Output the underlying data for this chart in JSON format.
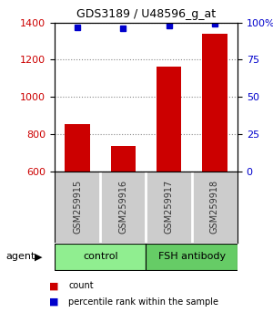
{
  "title": "GDS3189 / U48596_g_at",
  "samples": [
    "GSM259915",
    "GSM259916",
    "GSM259917",
    "GSM259918"
  ],
  "counts": [
    855,
    735,
    1165,
    1340
  ],
  "percentile_ranks": [
    97,
    96,
    98,
    99
  ],
  "ylim_left": [
    600,
    1400
  ],
  "ylim_right": [
    0,
    100
  ],
  "yticks_left": [
    600,
    800,
    1000,
    1200,
    1400
  ],
  "yticks_right": [
    0,
    25,
    50,
    75,
    100
  ],
  "ytick_labels_right": [
    "0",
    "25",
    "50",
    "75",
    "100%"
  ],
  "groups": [
    {
      "label": "control",
      "samples": [
        0,
        1
      ],
      "color": "#90EE90"
    },
    {
      "label": "FSH antibody",
      "samples": [
        2,
        3
      ],
      "color": "#66CC66"
    }
  ],
  "bar_color": "#CC0000",
  "dot_color": "#0000CC",
  "bar_width": 0.55,
  "background_color": "#ffffff",
  "plot_bg_color": "#ffffff",
  "sample_label_color": "#333333",
  "left_tick_color": "#CC0000",
  "right_tick_color": "#0000CC",
  "legend_items": [
    {
      "label": "count",
      "color": "#CC0000"
    },
    {
      "label": "percentile rank within the sample",
      "color": "#0000CC"
    }
  ],
  "agent_label": "agent",
  "grid_color": "#888888",
  "sample_box_color": "#cccccc"
}
